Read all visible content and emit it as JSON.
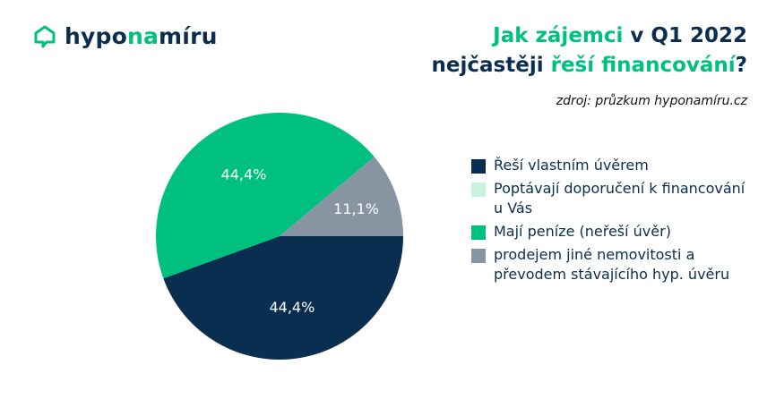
{
  "brand": {
    "name_pre": "hypo",
    "name_accent": "na",
    "name_post": "míru",
    "icon": "house-chat-icon"
  },
  "header": {
    "title_line1_green": "Jak zájemci",
    "title_line1_dark": " v Q1 2022",
    "title_line2_dark": "nejčastěji ",
    "title_line2_green": "řeší financování",
    "title_line2_end": "?",
    "source": "zdroj: průzkum hyponamíru.cz"
  },
  "colors": {
    "navy": "#0a2e4f",
    "mint": "#c8f3e0",
    "green": "#00c07f",
    "gray": "#8795a3"
  },
  "chart_data": {
    "type": "pie",
    "title": "Jak zájemci v Q1 2022 nejčastěji řeší financování?",
    "slices": [
      {
        "label": "Řeší vlastním úvěrem",
        "value": 44.4,
        "display": "44,4%",
        "color": "#0a2e4f"
      },
      {
        "label": "Poptávají doporučení k financování u Vás",
        "value": 0,
        "display": "",
        "color": "#c8f3e0"
      },
      {
        "label": "Mají peníze (neřeší úvěr)",
        "value": 44.4,
        "display": "44,4%",
        "color": "#00c07f"
      },
      {
        "label": "prodejem jiné nemovitosti a převodem stávajícího hyp. úvěru",
        "value": 11.1,
        "display": "11,1%",
        "color": "#8795a3"
      }
    ],
    "legend_position": "right"
  },
  "legend": {
    "items": [
      {
        "label": "Řeší vlastním úvěrem",
        "color": "#0a2e4f"
      },
      {
        "label": "Poptávají doporučení k financování u Vás",
        "color": "#c8f3e0"
      },
      {
        "label": "Mají peníze (neřeší úvěr)",
        "color": "#00c07f"
      },
      {
        "label": "prodejem jiné nemovitosti a převodem stávajícího hyp. úvěru",
        "color": "#8795a3"
      }
    ]
  }
}
